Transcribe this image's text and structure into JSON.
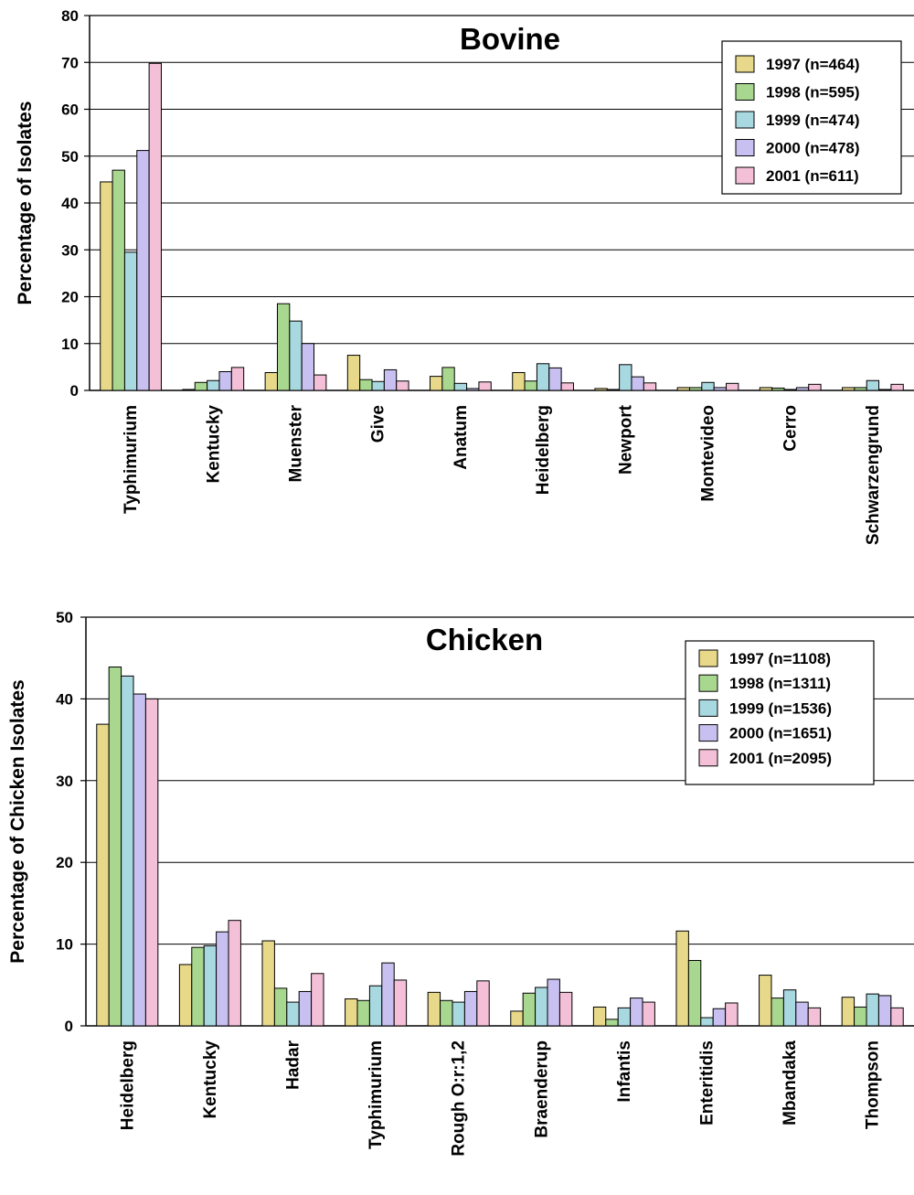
{
  "colors": {
    "s1997": "#e8d98a",
    "s1998": "#a8d890",
    "s1999": "#a8d8e0",
    "s2000": "#c8c0f0",
    "s2001": "#f4c0d8"
  },
  "chart_data": [
    {
      "type": "bar",
      "title": "Bovine",
      "xlabel": "",
      "ylabel": "Percentage of Isolates",
      "ylim": [
        0,
        80
      ],
      "yticks": [
        "0",
        "10",
        "20",
        "30",
        "40",
        "50",
        "60",
        "70",
        "80"
      ],
      "grid": true,
      "legend_position": "top-right",
      "categories": [
        "Typhimurium",
        "Kentucky",
        "Muenster",
        "Give",
        "Anatum",
        "Heidelberg",
        "Newport",
        "Montevideo",
        "Cerro",
        "Schwarzengrund"
      ],
      "series": [
        {
          "name": "1997 (n=464)",
          "color": "#e8d98a",
          "values": [
            44.5,
            0.2,
            3.8,
            7.5,
            3.0,
            3.8,
            0.4,
            0.6,
            0.6,
            0.6
          ]
        },
        {
          "name": "1998 (n=595)",
          "color": "#a8d890",
          "values": [
            47.0,
            1.7,
            18.5,
            2.3,
            4.9,
            2.0,
            0.2,
            0.6,
            0.5,
            0.6
          ]
        },
        {
          "name": "1999 (n=474)",
          "color": "#a8d8e0",
          "values": [
            29.5,
            2.1,
            14.8,
            1.9,
            1.5,
            5.7,
            5.5,
            1.7,
            0.2,
            2.1
          ]
        },
        {
          "name": "2000 (n=478)",
          "color": "#c8c0f0",
          "values": [
            51.2,
            4.0,
            10.0,
            4.4,
            0.4,
            4.8,
            2.9,
            0.6,
            0.6,
            0.2
          ]
        },
        {
          "name": "2001 (n=611)",
          "color": "#f4c0d8",
          "values": [
            69.8,
            4.9,
            3.3,
            2.0,
            1.8,
            1.6,
            1.6,
            1.5,
            1.3,
            1.3
          ]
        }
      ]
    },
    {
      "type": "bar",
      "title": "Chicken",
      "xlabel": "",
      "ylabel": "Percentage of Chicken Isolates",
      "ylim": [
        0,
        50
      ],
      "yticks": [
        "0",
        "10",
        "20",
        "30",
        "40",
        "50"
      ],
      "grid": true,
      "legend_position": "top-right",
      "categories": [
        "Heidelberg",
        "Kentucky",
        "Hadar",
        "Typhimurium",
        "Rough O:r:1,2",
        "Braenderup",
        "Infantis",
        "Enteritidis",
        "Mbandaka",
        "Thompson"
      ],
      "series": [
        {
          "name": "1997 (n=1108)",
          "color": "#e8d98a",
          "values": [
            36.9,
            7.5,
            10.4,
            3.3,
            4.1,
            1.8,
            2.3,
            11.6,
            6.2,
            3.5
          ]
        },
        {
          "name": "1998 (n=1311)",
          "color": "#a8d890",
          "values": [
            43.9,
            9.6,
            4.6,
            3.1,
            3.1,
            4.0,
            0.8,
            8.0,
            3.4,
            2.3
          ]
        },
        {
          "name": "1999 (n=1536)",
          "color": "#a8d8e0",
          "values": [
            42.8,
            9.8,
            2.9,
            4.9,
            2.9,
            4.7,
            2.2,
            1.0,
            4.4,
            3.9
          ]
        },
        {
          "name": "2000 (n=1651)",
          "color": "#c8c0f0",
          "values": [
            40.6,
            11.5,
            4.2,
            7.7,
            4.2,
            5.7,
            3.4,
            2.1,
            2.9,
            3.7
          ]
        },
        {
          "name": "2001 (n=2095)",
          "color": "#f4c0d8",
          "values": [
            40.0,
            12.9,
            6.4,
            5.6,
            5.5,
            4.1,
            2.9,
            2.8,
            2.2,
            2.2
          ]
        }
      ]
    }
  ]
}
